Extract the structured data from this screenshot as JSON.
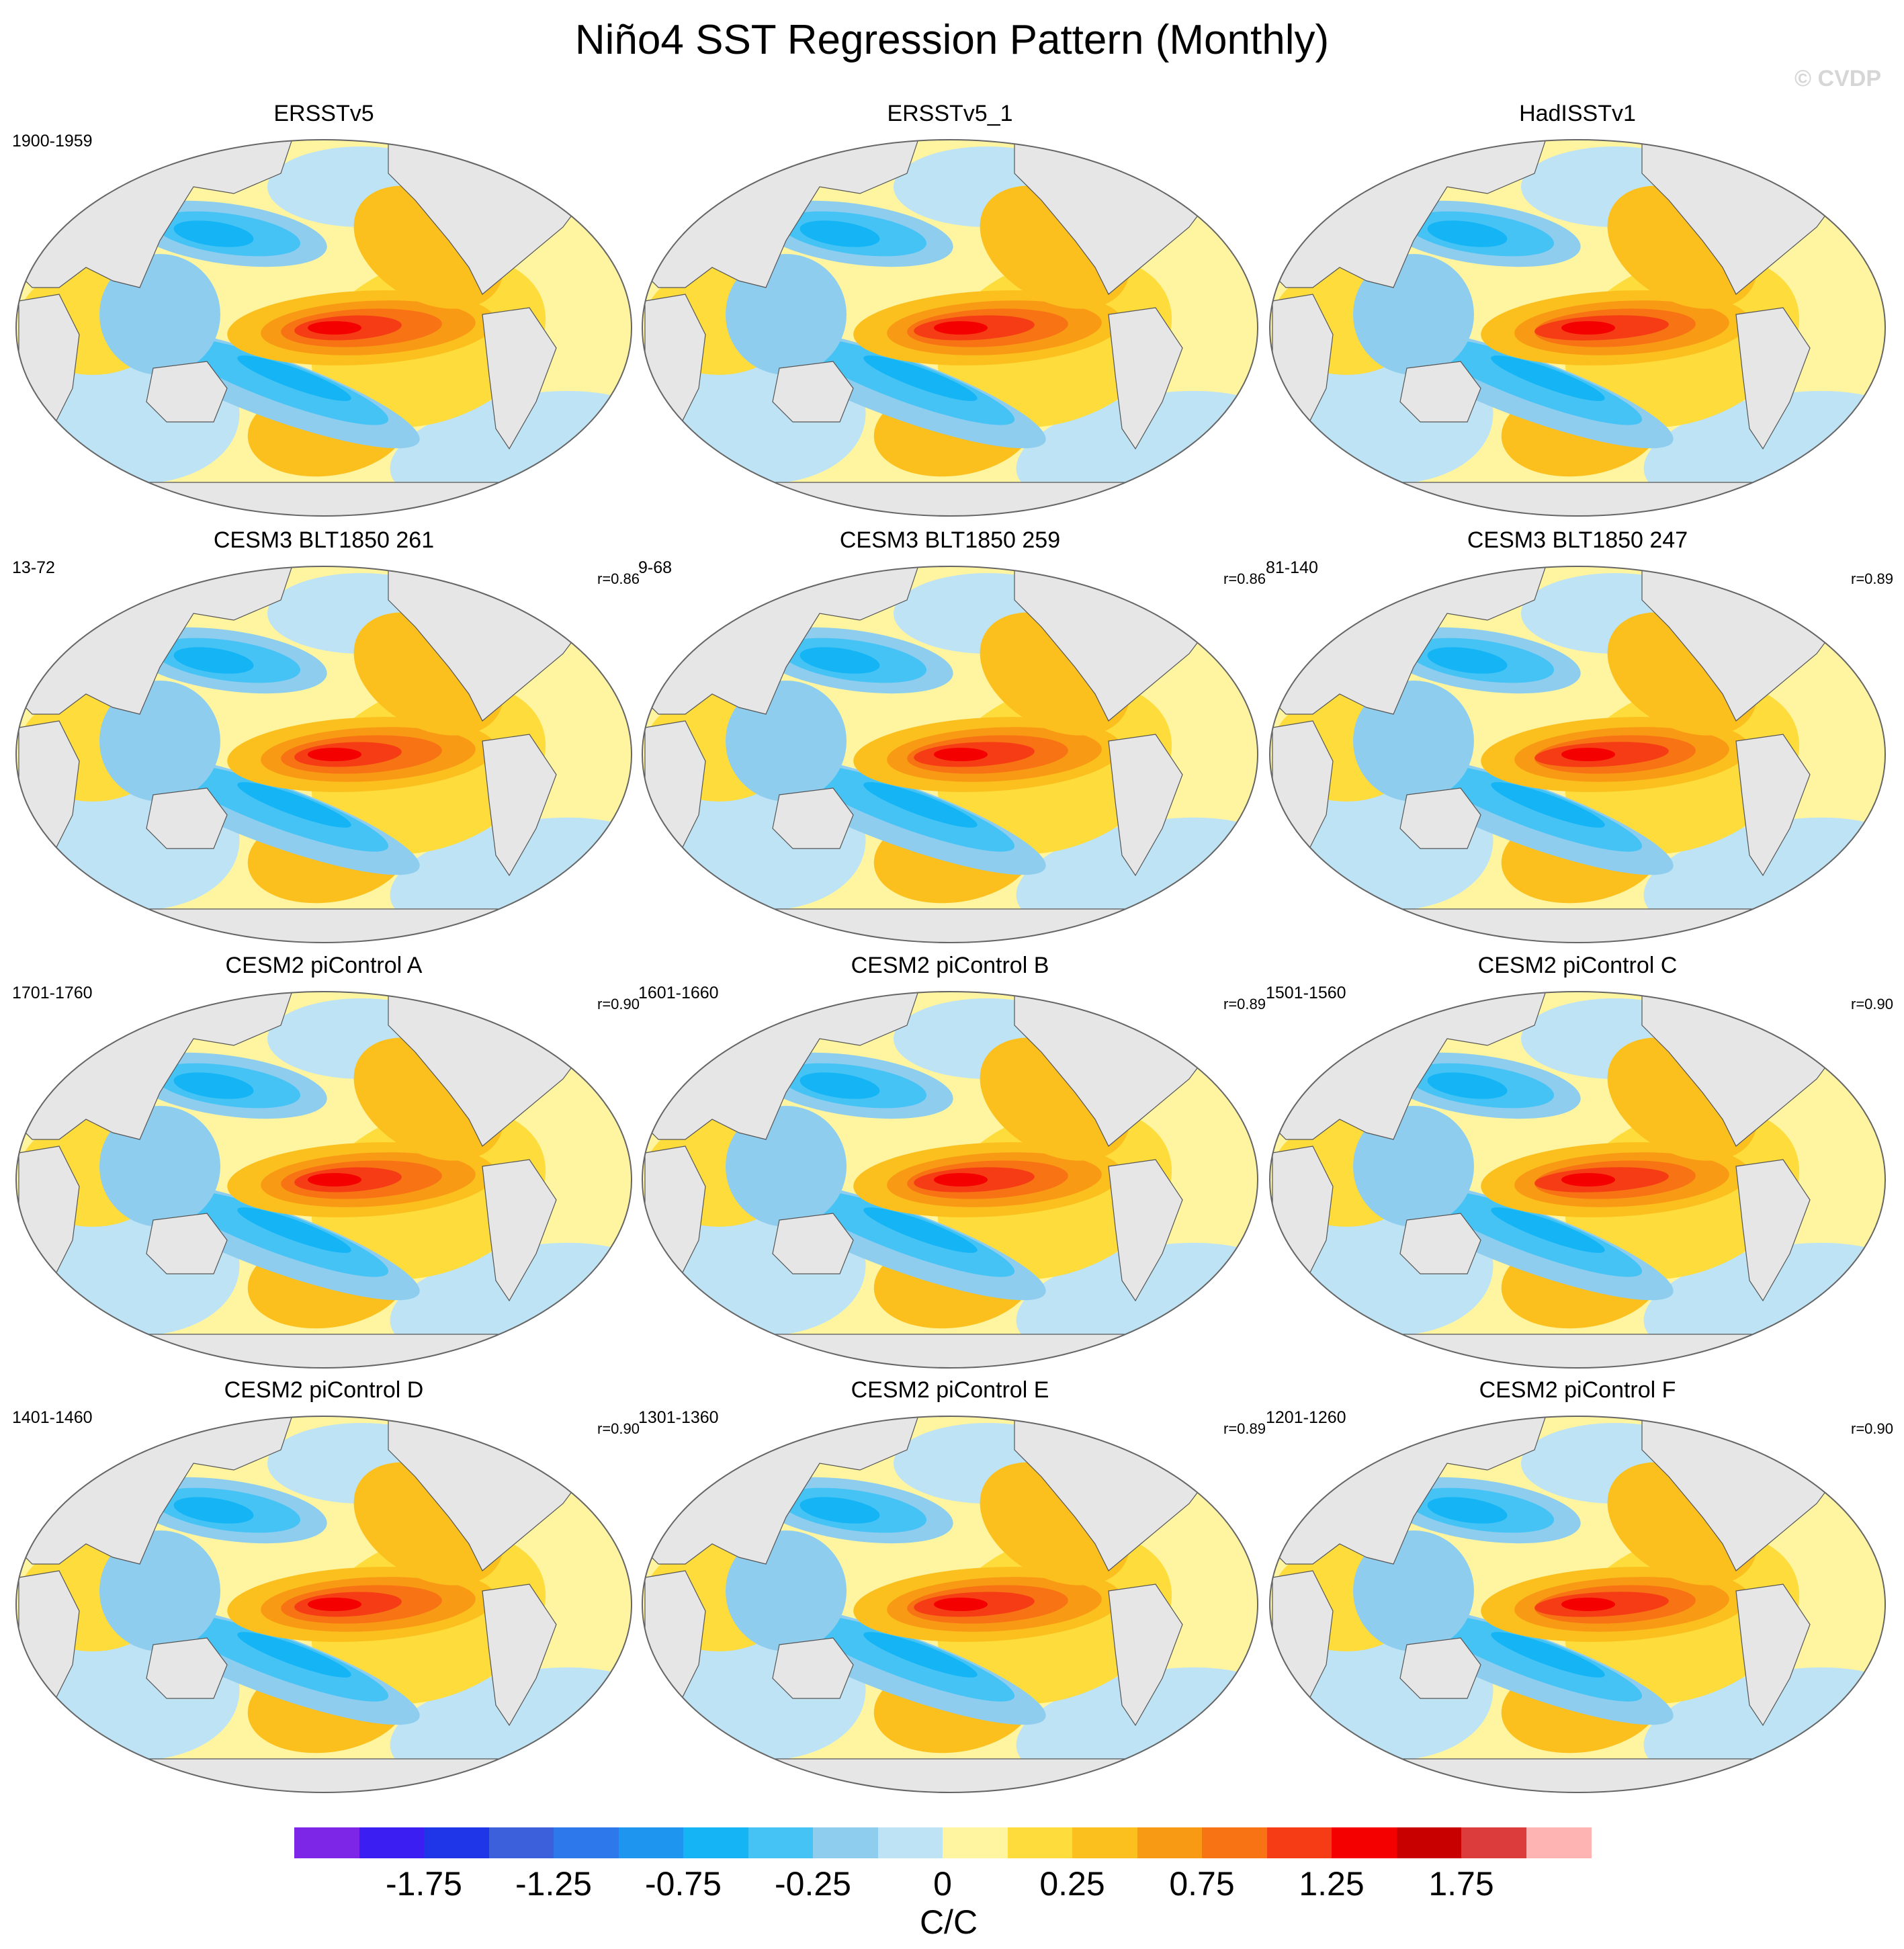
{
  "figure": {
    "title": "Niño4 SST Regression Pattern (Monthly)",
    "watermark": "© CVDP"
  },
  "panels": [
    {
      "title": "ERSSTv5",
      "period": "1900-1959",
      "corr": ""
    },
    {
      "title": "ERSSTv5_1",
      "period": "",
      "corr": ""
    },
    {
      "title": "HadISSTv1",
      "period": "",
      "corr": ""
    },
    {
      "title": "CESM3 BLT1850 261",
      "period": "13-72",
      "corr": "r=0.86"
    },
    {
      "title": "CESM3 BLT1850 259",
      "period": "9-68",
      "corr": "r=0.86"
    },
    {
      "title": "CESM3 BLT1850 247",
      "period": "81-140",
      "corr": "r=0.89"
    },
    {
      "title": "CESM2 piControl A",
      "period": "1701-1760",
      "corr": "r=0.90"
    },
    {
      "title": "CESM2 piControl B",
      "period": "1601-1660",
      "corr": "r=0.89"
    },
    {
      "title": "CESM2 piControl C",
      "period": "1501-1560",
      "corr": "r=0.90"
    },
    {
      "title": "CESM2 piControl D",
      "period": "1401-1460",
      "corr": "r=0.90"
    },
    {
      "title": "CESM2 piControl E",
      "period": "1301-1360",
      "corr": "r=0.89"
    },
    {
      "title": "CESM2 piControl F",
      "period": "1201-1260",
      "corr": "r=0.90"
    }
  ],
  "colorbar": {
    "unit": "C/C",
    "colors": [
      "#7d26e8",
      "#3b1ef2",
      "#1e35e8",
      "#3c5fdc",
      "#2d78ea",
      "#1e96f0",
      "#14b4f5",
      "#46c3f5",
      "#8fcdee",
      "#bde3f5",
      "#fff5a0",
      "#fddc3c",
      "#fbbf1e",
      "#f99a14",
      "#f77314",
      "#f53c14",
      "#f50000",
      "#c80000",
      "#dc3c3c",
      "#ffb4b4"
    ],
    "labels": [
      "-1.75",
      "-1.25",
      "-0.75",
      "-0.25",
      "0",
      "0.25",
      "0.75",
      "1.25",
      "1.75"
    ]
  },
  "legend": {
    "land_color": "#e6e6e6",
    "ocean_base_color": "#fff5a0"
  }
}
